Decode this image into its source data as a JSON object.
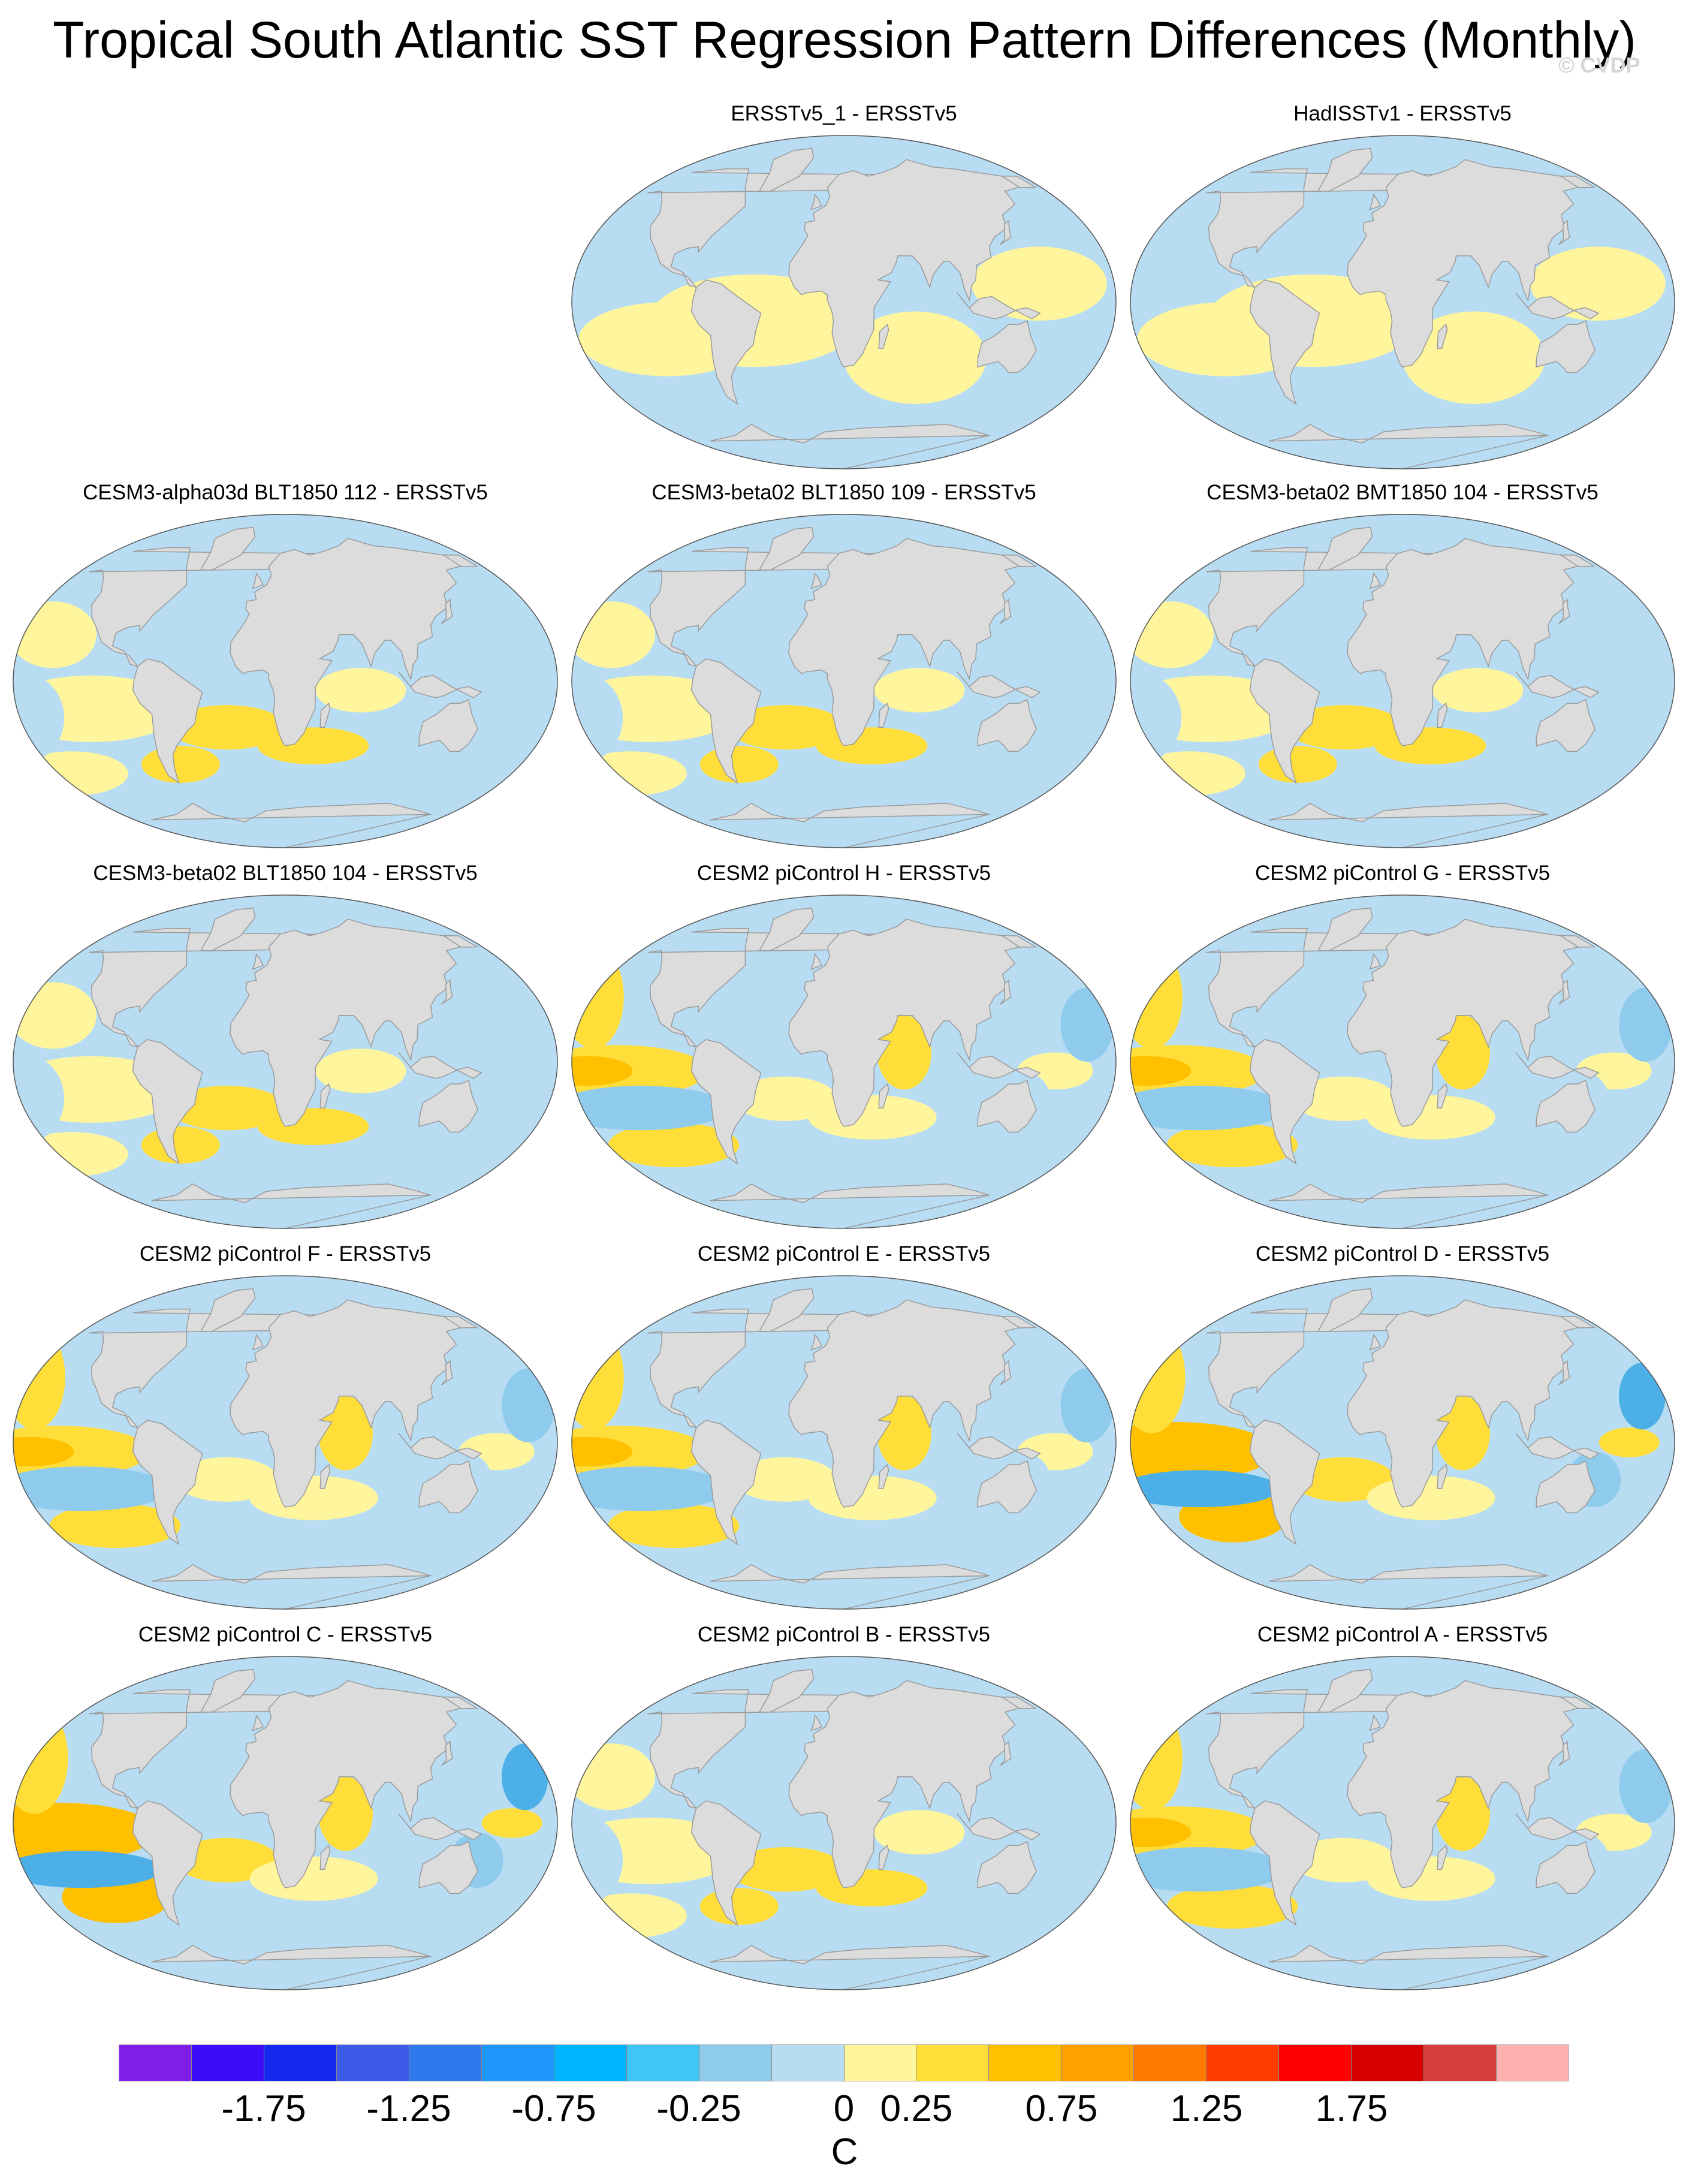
{
  "title": "Tropical South Atlantic SST Regression Pattern Differences (Monthly)",
  "copyright": "© CVDP",
  "colors": {
    "land": "#dcdcdc",
    "coast": "#9a9a9a",
    "blue_1": "#b8ddf3",
    "blue_2": "#8fcbed",
    "blue_3": "#4dafe8",
    "yellow_1": "#fff59d",
    "yellow_2": "#ffde3a",
    "yellow_3": "#ffc000"
  },
  "panels": [
    {
      "title": "ERSSTv5_1 - ERSSTv5",
      "intensity": 0
    },
    {
      "title": "HadISSTv1 - ERSSTv5",
      "intensity": 0
    },
    {
      "title": "CESM3-alpha03d BLT1850 112 - ERSSTv5",
      "intensity": 1
    },
    {
      "title": "CESM3-beta02 BLT1850 109 - ERSSTv5",
      "intensity": 1
    },
    {
      "title": "CESM3-beta02 BMT1850 104 - ERSSTv5",
      "intensity": 1
    },
    {
      "title": "CESM3-beta02 BLT1850 104 - ERSSTv5",
      "intensity": 1
    },
    {
      "title": "CESM2 piControl H - ERSSTv5",
      "intensity": 2
    },
    {
      "title": "CESM2 piControl G - ERSSTv5",
      "intensity": 2
    },
    {
      "title": "CESM2 piControl F - ERSSTv5",
      "intensity": 2
    },
    {
      "title": "CESM2 piControl E - ERSSTv5",
      "intensity": 2
    },
    {
      "title": "CESM2 piControl D - ERSSTv5",
      "intensity": 3
    },
    {
      "title": "CESM2 piControl C - ERSSTv5",
      "intensity": 3
    },
    {
      "title": "CESM2 piControl B - ERSSTv5",
      "intensity": 1
    },
    {
      "title": "CESM2 piControl A - ERSSTv5",
      "intensity": 2
    }
  ],
  "colorbar": {
    "colors": [
      "#7e1ee6",
      "#3d0af5",
      "#1428f0",
      "#3c5ae6",
      "#2f78ec",
      "#1e96fa",
      "#00b4ff",
      "#3ec6f5",
      "#8fcbed",
      "#b8ddf3",
      "#fff59d",
      "#ffde3a",
      "#ffc000",
      "#ffa000",
      "#ff7800",
      "#ff3c00",
      "#ff0000",
      "#d70000",
      "#d63c3c",
      "#ffb0b0"
    ],
    "tick_labels": [
      "-1.75",
      "-1.25",
      "-0.75",
      "-0.25",
      "0",
      "0.25",
      "0.75",
      "1.25",
      "1.75"
    ],
    "tick_values": [
      -1.75,
      -1.25,
      -0.75,
      -0.25,
      0,
      0.25,
      0.75,
      1.25,
      1.75
    ],
    "units": "C"
  }
}
